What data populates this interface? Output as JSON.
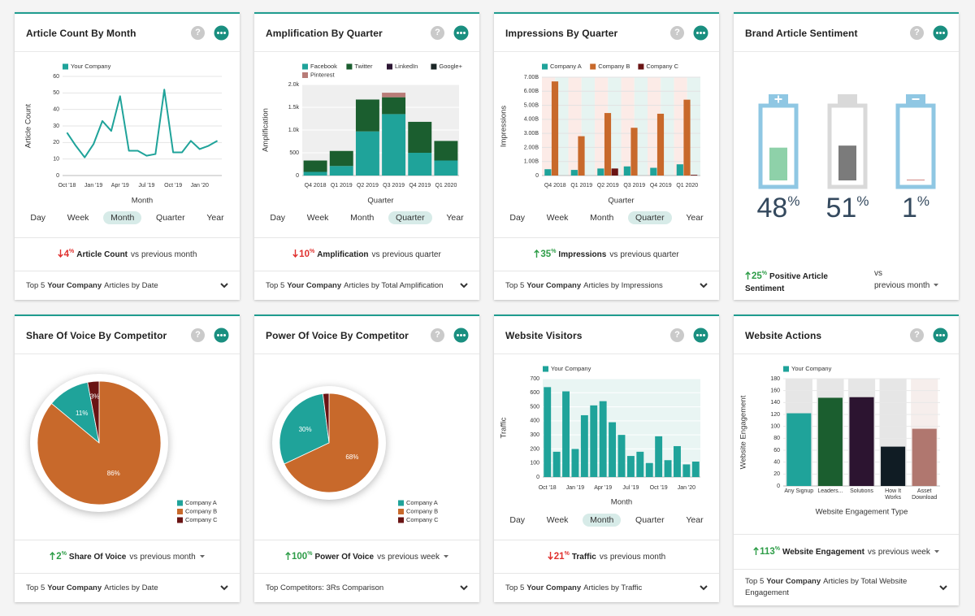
{
  "icons": {
    "help": "?"
  },
  "cards": [
    {
      "title": "Article Count By Month",
      "chart": {
        "type": "line",
        "series": [
          {
            "name": "Your Company",
            "color": "#1fa39a",
            "values": [
              26,
              18,
              11,
              19,
              33,
              27,
              48,
              15,
              15,
              12,
              13,
              52,
              14,
              14,
              21,
              16,
              18,
              21
            ]
          }
        ],
        "categories": [
          "Oct '18",
          null,
          null,
          "Jan '19",
          null,
          null,
          "Apr '19",
          null,
          null,
          "Jul '19",
          null,
          null,
          "Oct '19",
          null,
          null,
          "Jan '20",
          null,
          null
        ],
        "ylim": [
          0,
          60
        ],
        "yticks": [
          0,
          10,
          20,
          30,
          40,
          50,
          60
        ],
        "ylabel": "Article Count",
        "xlabel": "Month",
        "grid": true,
        "grid_color": "#e4e4e4",
        "plot_background": "#ffffff"
      },
      "periods": [
        "Day",
        "Week",
        "Month",
        "Quarter",
        "Year"
      ],
      "selected_period": "Month",
      "summary": {
        "direction": "down",
        "change": 4,
        "unit": "%",
        "metric": "Article Count",
        "comparison": "vs",
        "period": "previous month",
        "dropdown": false
      },
      "details": {
        "prefix": "Top 5",
        "company": "Your Company",
        "suffix": "Articles by Date"
      }
    },
    {
      "title": "Amplification By Quarter",
      "chart": {
        "type": "stacked_bar",
        "categories": [
          "Q4 2018",
          "Q1 2019",
          "Q2 2019",
          "Q3 2019",
          "Q4 2019",
          "Q1 2020"
        ],
        "series": [
          {
            "name": "Facebook",
            "color": "#1fa39a",
            "values": [
              80,
              210,
              970,
              1350,
              500,
              330
            ]
          },
          {
            "name": "Twitter",
            "color": "#1b5e2f",
            "values": [
              250,
              330,
              700,
              370,
              680,
              430
            ]
          },
          {
            "name": "LinkedIn",
            "color": "#2c1633",
            "values": [
              0,
              0,
              0,
              0,
              0,
              0
            ]
          },
          {
            "name": "Google+",
            "color": "#1a2626",
            "values": [
              0,
              0,
              0,
              0,
              0,
              0
            ]
          },
          {
            "name": "Pinterest",
            "color": "#b87c78",
            "values": [
              0,
              0,
              0,
              100,
              0,
              0
            ]
          }
        ],
        "ylim": [
          0,
          2000
        ],
        "yticks": [
          0,
          500,
          {
            "value": 1000,
            "label": "1.0k"
          },
          {
            "value": 1500,
            "label": "1.5k"
          },
          {
            "value": 2000,
            "label": "2.0k"
          }
        ],
        "ylabel": "Amplification",
        "xlabel": "Quarter",
        "grid": true,
        "grid_color": "#ffffff",
        "plot_background": "#efefef"
      },
      "periods": [
        "Day",
        "Week",
        "Month",
        "Quarter",
        "Year"
      ],
      "selected_period": "Quarter",
      "summary": {
        "direction": "down",
        "change": 10,
        "unit": "%",
        "metric": "Amplification",
        "comparison": "vs",
        "period": "previous quarter",
        "dropdown": false
      },
      "details": {
        "prefix": "Top 5",
        "company": "Your Company",
        "suffix": "Articles by Total Amplification"
      }
    },
    {
      "title": "Impressions By Quarter",
      "chart": {
        "type": "grouped_bar",
        "categories": [
          "Q4 2018",
          "Q1 2019",
          "Q2 2019",
          "Q3 2019",
          "Q4 2019",
          "Q1 2020"
        ],
        "series": [
          {
            "name": "Company A",
            "color": "#1fa39a",
            "values": [
              450000000,
              400000000,
              500000000,
              650000000,
              550000000,
              800000000
            ]
          },
          {
            "name": "Company B",
            "color": "#c8692b",
            "values": [
              6700000000,
              2800000000,
              4450000000,
              3400000000,
              4400000000,
              5400000000
            ]
          },
          {
            "name": "Company C",
            "color": "#6a1414",
            "values": [
              0,
              0,
              500000000,
              0,
              0,
              50000000
            ]
          }
        ],
        "ylim": [
          0,
          7000000000
        ],
        "yticks": [
          0,
          {
            "value": 1000000000,
            "label": "1.00B"
          },
          {
            "value": 2000000000,
            "label": "2.00B"
          },
          {
            "value": 3000000000,
            "label": "3.00B"
          },
          {
            "value": 4000000000,
            "label": "4.00B"
          },
          {
            "value": 5000000000,
            "label": "5.00B"
          },
          {
            "value": 6000000000,
            "label": "6.00B"
          },
          {
            "value": 7000000000,
            "label": "7.00B"
          }
        ],
        "ylabel": "Impressions",
        "xlabel": "Quarter",
        "grid": true,
        "grid_color": "#e2e2e2",
        "band_colors": [
          "#fcebe7",
          "#e6f4f1"
        ]
      },
      "periods": [
        "Day",
        "Week",
        "Month",
        "Quarter",
        "Year"
      ],
      "selected_period": "Quarter",
      "summary": {
        "direction": "up",
        "change": 35,
        "unit": "%",
        "metric": "Impressions",
        "comparison": "vs",
        "period": "previous quarter",
        "dropdown": false
      },
      "details": {
        "prefix": "Top 5",
        "company": "Your Company",
        "suffix": "Articles by Impressions"
      }
    },
    {
      "title": "Brand Article Sentiment",
      "chart": {
        "type": "battery",
        "values": [
          48,
          51,
          1
        ],
        "unit": "%",
        "ylim": [
          0,
          100
        ],
        "colors": [
          "#8ed1a9",
          "#7b7b7b",
          "#c9706a"
        ],
        "frames": [
          "#8fc7e3",
          "#d9d9d9",
          "#8fc7e3"
        ],
        "symbols": [
          "plus",
          null,
          "minus"
        ]
      },
      "summary": {
        "direction": "up",
        "change": 25,
        "unit": "%",
        "metric": "Positive Article Sentiment",
        "comparison": "vs",
        "period": "previous month",
        "dropdown": true
      }
    },
    {
      "title": "Share Of Voice By Competitor",
      "chart": {
        "type": "pie",
        "categories": [
          "Company A",
          "Company B",
          "Company C"
        ],
        "values": [
          11,
          86,
          3
        ],
        "value_labels": [
          "11%",
          "86%",
          "3%"
        ],
        "colors": [
          "#1fa39a",
          "#c8692b",
          "#6a1414"
        ],
        "legend": "bottom-right"
      },
      "summary": {
        "direction": "up",
        "change": 2,
        "unit": "%",
        "metric": "Share Of Voice",
        "comparison": "vs",
        "period": "previous month",
        "dropdown": true
      },
      "details": {
        "prefix": "Top 5",
        "company": "Your Company",
        "suffix": "Articles by Date"
      }
    },
    {
      "title": "Power Of Voice By Competitor",
      "chart": {
        "type": "pie",
        "categories": [
          "Company A",
          "Company B",
          "Company C"
        ],
        "values": [
          30,
          68,
          2
        ],
        "value_labels": [
          "30%",
          "68%",
          null
        ],
        "colors": [
          "#1fa39a",
          "#c8692b",
          "#6a1414"
        ],
        "legend": "bottom-right"
      },
      "summary": {
        "direction": "up",
        "change": 100,
        "unit": "%",
        "metric": "Power Of Voice",
        "comparison": "vs",
        "period": "previous week",
        "dropdown": true
      },
      "details": {
        "text": "Top Competitors: 3Rs Comparison"
      }
    },
    {
      "title": "Website Visitors",
      "chart": {
        "type": "bar",
        "series": [
          {
            "name": "Your Company",
            "color": "#1fa39a",
            "values": [
              640,
              180,
              610,
              200,
              440,
              510,
              540,
              390,
              300,
              150,
              180,
              100,
              290,
              120,
              220,
              90,
              110
            ]
          }
        ],
        "categories": [
          "Oct '18",
          null,
          null,
          "Jan '19",
          null,
          null,
          "Apr '19",
          null,
          null,
          "Jul '19",
          null,
          null,
          "Oct '19",
          null,
          null,
          "Jan '20",
          null
        ],
        "ylim": [
          0,
          700
        ],
        "yticks": [
          0,
          100,
          200,
          300,
          400,
          500,
          600,
          700
        ],
        "ylabel": "Traffic",
        "xlabel": "Month",
        "grid": true,
        "grid_color": "#ffffff",
        "plot_background": "#e9f5f3"
      },
      "periods": [
        "Day",
        "Week",
        "Month",
        "Quarter",
        "Year"
      ],
      "selected_period": "Month",
      "summary": {
        "direction": "down",
        "change": 21,
        "unit": "%",
        "metric": "Traffic",
        "comparison": "vs",
        "period": "previous month",
        "dropdown": false
      },
      "details": {
        "prefix": "Top 5",
        "company": "Your Company",
        "suffix": "Articles by Traffic"
      }
    },
    {
      "title": "Website Actions",
      "chart": {
        "type": "bar",
        "series": [
          {
            "name": "Your Company",
            "color": "#1fa39a",
            "values": [
              122,
              148,
              149,
              66,
              96
            ]
          }
        ],
        "categories": [
          "Any Signup",
          "Leaders...",
          "Solutions",
          "How It Works",
          "Asset Download"
        ],
        "colors": [
          "#1fa39a",
          "#1b5e2f",
          "#2c1430",
          "#101c24",
          "#b0776f"
        ],
        "band_colors": [
          "#e6e6e6",
          "#e6e6e6",
          "#e6e6e6",
          "#e6e6e6",
          "#f6eeec"
        ],
        "wrap_labels": true,
        "ylim": [
          0,
          180
        ],
        "yticks": [
          0,
          20,
          40,
          60,
          80,
          100,
          120,
          140,
          160,
          180
        ],
        "ylabel": "Website Engagement",
        "xlabel": "Website Engagement Type",
        "grid": true,
        "grid_color": "#e8e8e8"
      },
      "summary": {
        "direction": "up",
        "change": 113,
        "unit": "%",
        "metric": "Website Engagement",
        "comparison": "vs",
        "period": "previous week",
        "dropdown": true
      },
      "details": {
        "prefix": "Top 5",
        "company": "Your Company",
        "suffix": "Articles by Total Website Engagement"
      }
    }
  ]
}
